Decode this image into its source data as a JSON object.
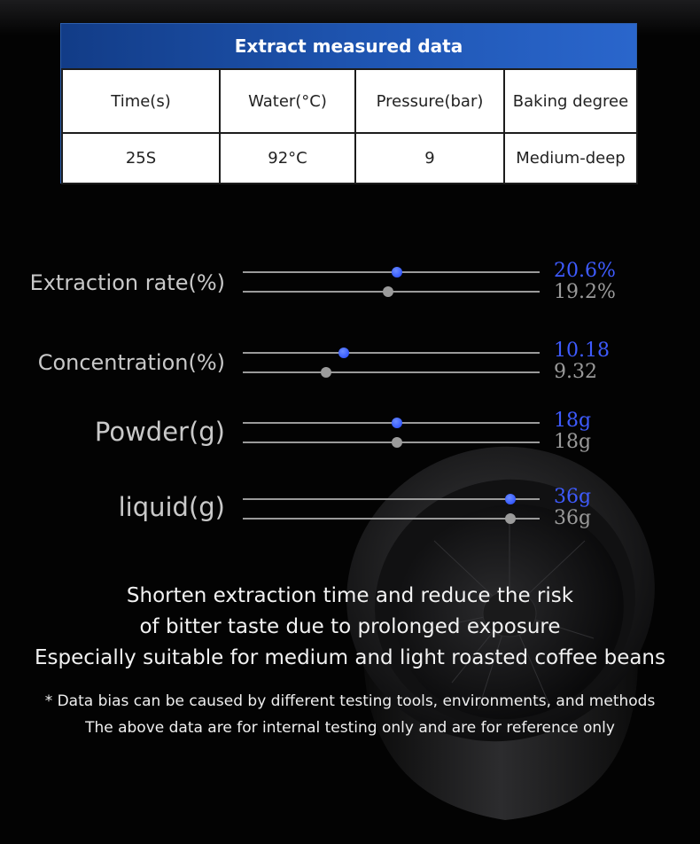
{
  "table": {
    "title": "Extract measured data",
    "headers": [
      "Time(s)",
      "Water(°C)",
      "Pressure(bar)",
      "Baking degree"
    ],
    "values": [
      "25S",
      "92°C",
      "9",
      "Medium-deep"
    ]
  },
  "metrics": [
    {
      "label": "Extraction rate(%)",
      "blue_value": "20.6%",
      "gray_value": "19.2%",
      "blue_level": 0.52,
      "gray_level": 0.49
    },
    {
      "label": "Concentration(%)",
      "blue_value": "10.18",
      "gray_value": "9.32",
      "blue_level": 0.34,
      "gray_level": 0.28
    },
    {
      "label": "Powder(g)",
      "blue_value": "18g",
      "gray_value": "18g",
      "blue_level": 0.52,
      "gray_level": 0.52
    },
    {
      "label": "liquid(g)",
      "blue_value": "36g",
      "gray_value": "36g",
      "blue_level": 0.9,
      "gray_level": 0.9
    }
  ],
  "captions": [
    "Shorten extraction time and reduce the risk",
    "of bitter taste due to prolonged exposure",
    "Especially suitable for medium and light roasted coffee beans"
  ],
  "notes": [
    "* Data bias can be caused by different testing tools, environments, and methods",
    "The above data are for internal testing only and are for reference only"
  ],
  "colors": {
    "accent_blue": "#3e5bff",
    "header_blue": "#1f56b3",
    "gray": "#9a9a9a"
  },
  "product_image": "coffee-filter-basket"
}
